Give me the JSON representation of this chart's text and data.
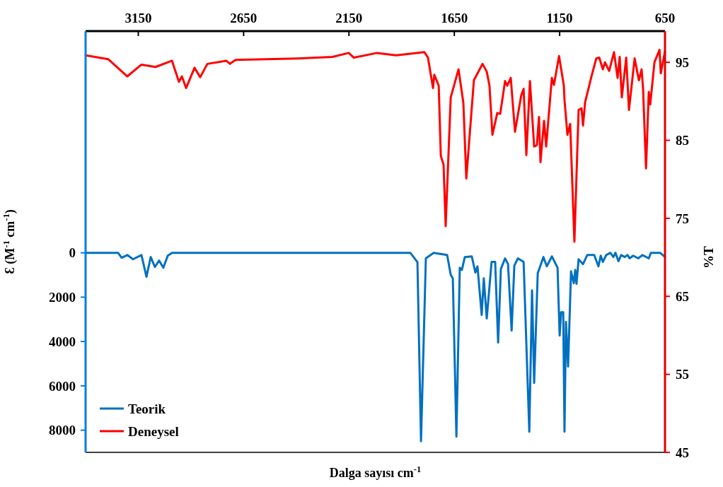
{
  "chart_data": {
    "type": "line",
    "xlabel": "Dalga sayısı cm$^{-1}$",
    "ylabel": "Ɛ (M$^{-1}$ cm$^{-1}$)",
    "y2label": "%T",
    "xlim": [
      3400,
      650
    ],
    "xticks": [
      3150,
      2650,
      2150,
      1650,
      1150,
      650
    ],
    "ylim": [
      9000,
      -10000
    ],
    "yticks": [
      0,
      2000,
      4000,
      6000,
      8000
    ],
    "y2lim": [
      45,
      99
    ],
    "y2ticks": [
      45,
      55,
      65,
      75,
      85,
      95
    ],
    "legend": "bottom left",
    "grid": false,
    "marker": "none",
    "line_style": "solid",
    "series": [
      {
        "name": "Teorik",
        "color": "#0070c0",
        "axis": "y",
        "x": [
          3400,
          3246,
          3229,
          3202,
          3175,
          3135,
          3111,
          3091,
          3071,
          3051,
          3031,
          3010,
          2990,
          1859,
          1825,
          1808,
          1785,
          1748,
          1684,
          1667,
          1657,
          1640,
          1624,
          1614,
          1600,
          1567,
          1550,
          1540,
          1520,
          1510,
          1496,
          1473,
          1456,
          1442,
          1429,
          1409,
          1395,
          1378,
          1365,
          1348,
          1321,
          1294,
          1281,
          1271,
          1254,
          1227,
          1211,
          1187,
          1160,
          1150,
          1143,
          1133,
          1127,
          1120,
          1110,
          1096,
          1083,
          1076,
          1070,
          1060,
          1039,
          1019,
          986,
          966,
          955,
          945,
          929,
          909,
          895,
          885,
          871,
          858,
          841,
          828,
          818,
          801,
          777,
          757,
          727,
          717,
          673,
          650
        ],
        "values": [
          0,
          0,
          220,
          100,
          290,
          100,
          1080,
          190,
          640,
          350,
          670,
          130,
          0,
          0,
          420,
          8500,
          250,
          0,
          100,
          990,
          1150,
          8290,
          670,
          770,
          190,
          160,
          890,
          610,
          2800,
          1150,
          2960,
          410,
          410,
          4050,
          730,
          250,
          510,
          3510,
          570,
          250,
          410,
          8070,
          1690,
          5870,
          920,
          190,
          610,
          160,
          670,
          3730,
          2680,
          2680,
          8070,
          3120,
          5130,
          830,
          1370,
          770,
          1400,
          290,
          510,
          100,
          100,
          610,
          130,
          410,
          100,
          0,
          190,
          0,
          380,
          100,
          190,
          100,
          250,
          130,
          250,
          100,
          250,
          0,
          0,
          190
        ]
      },
      {
        "name": "Deneysel",
        "color": "#ff0000",
        "axis": "y2",
        "x": [
          3400,
          3293,
          3202,
          3135,
          3068,
          2990,
          2957,
          2943,
          2923,
          2883,
          2856,
          2822,
          2732,
          2715,
          2688,
          2396,
          2228,
          2151,
          2127,
          2017,
          1926,
          1792,
          1775,
          1751,
          1745,
          1724,
          1714,
          1701,
          1691,
          1667,
          1630,
          1607,
          1593,
          1557,
          1516,
          1496,
          1483,
          1469,
          1446,
          1432,
          1409,
          1399,
          1382,
          1362,
          1332,
          1321,
          1308,
          1291,
          1271,
          1258,
          1248,
          1241,
          1224,
          1214,
          1187,
          1177,
          1153,
          1130,
          1127,
          1113,
          1100,
          1080,
          1060,
          1046,
          1039,
          1029,
          996,
          976,
          962,
          945,
          935,
          915,
          892,
          875,
          865,
          855,
          834,
          821,
          794,
          774,
          761,
          754,
          740,
          727,
          720,
          700,
          676,
          670,
          650
        ],
        "values": [
          95.9,
          95.4,
          93.2,
          94.7,
          94.4,
          95.2,
          92.5,
          93.2,
          91.7,
          94.3,
          93.1,
          94.8,
          95.2,
          94.8,
          95.3,
          95.5,
          95.7,
          96.2,
          95.6,
          96.2,
          95.9,
          96.3,
          95.6,
          91.7,
          93.4,
          92.0,
          83.0,
          81.9,
          74.0,
          90.5,
          94.1,
          89.8,
          80.1,
          92.7,
          94.8,
          93.8,
          92.0,
          85.7,
          88.5,
          88.4,
          92.6,
          92.0,
          93.0,
          86.1,
          90.8,
          91.6,
          83.1,
          92.6,
          84.2,
          84.4,
          88.0,
          82.2,
          87.5,
          84.2,
          93.0,
          92.1,
          95.8,
          92.0,
          90.2,
          85.7,
          87.1,
          72.0,
          88.9,
          89.1,
          86.9,
          89.9,
          93.5,
          95.5,
          95.6,
          94.1,
          95.0,
          93.9,
          96.3,
          93.0,
          95.7,
          90.5,
          95.6,
          88.9,
          95.5,
          92.7,
          94.1,
          91.6,
          81.4,
          91.2,
          89.6,
          95.0,
          96.6,
          93.6,
          96.4
        ]
      }
    ]
  }
}
